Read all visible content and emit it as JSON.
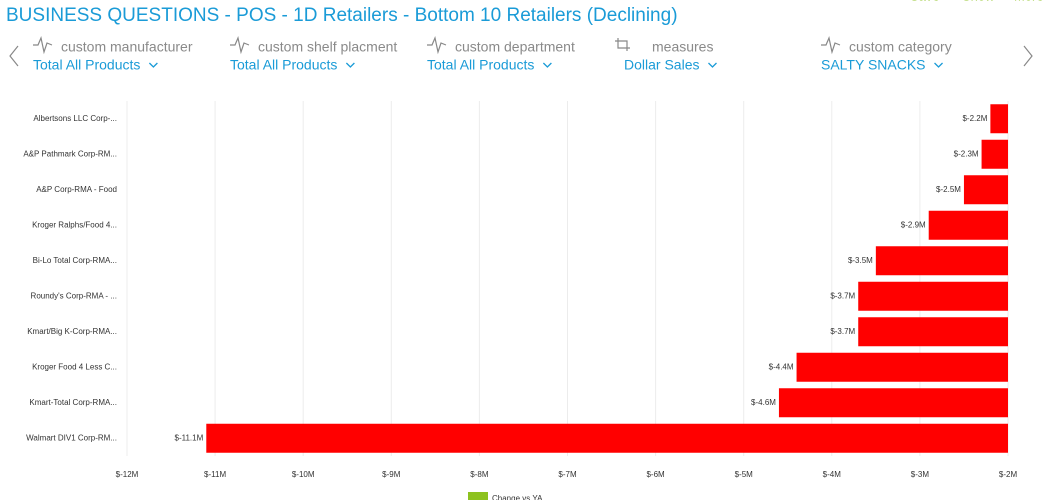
{
  "header": {
    "title": "BUSINESS QUESTIONS - POS - 1D Retailers - Bottom 10 Retailers (Declining)",
    "actions": [
      "Save",
      "Show",
      "More"
    ]
  },
  "filters": [
    {
      "label": "custom manufacturer",
      "value": "Total All Products"
    },
    {
      "label": "custom shelf placment",
      "value": "Total All Products"
    },
    {
      "label": "custom department",
      "value": "Total All Products"
    },
    {
      "label": "measures",
      "value": "Dollar Sales"
    },
    {
      "label": "custom category",
      "value": "SALTY SNACKS"
    }
  ],
  "chart_data": {
    "type": "hbar",
    "categories": [
      "Albertsons LLC Corp-...",
      "A&P Pathmark Corp-RM...",
      "A&P Corp-RMA - Food",
      "Kroger Ralphs/Food 4...",
      "Bi-Lo Total Corp-RMA...",
      "Roundy's Corp-RMA - ...",
      "Kmart/Big K-Corp-RMA...",
      "Kroger Food 4 Less C...",
      "Kmart-Total Corp-RMA...",
      "Walmart DIV1 Corp-RM..."
    ],
    "series": [
      {
        "name": "Change vs YA",
        "color": "#ff0000",
        "legend_color": "#8dc21f",
        "values": [
          -2200000,
          -2300000,
          -2500000,
          -2900000,
          -3500000,
          -3700000,
          -3700000,
          -4400000,
          -4600000,
          -11100000
        ],
        "value_labels": [
          "$-2.2M",
          "$-2.3M",
          "$-2.5M",
          "$-2.9M",
          "$-3.5M",
          "$-3.7M",
          "$-3.7M",
          "$-4.4M",
          "$-4.6M",
          "$-11.1M"
        ]
      }
    ],
    "xlim": [
      -12000000,
      -2000000
    ],
    "xticks": [
      {
        "value": -12000000,
        "label": "$-12M"
      },
      {
        "value": -11000000,
        "label": "$-11M"
      },
      {
        "value": -10000000,
        "label": "$-10M"
      },
      {
        "value": -9000000,
        "label": "$-9M"
      },
      {
        "value": -8000000,
        "label": "$-8M"
      },
      {
        "value": -7000000,
        "label": "$-7M"
      },
      {
        "value": -6000000,
        "label": "$-6M"
      },
      {
        "value": -5000000,
        "label": "$-5M"
      },
      {
        "value": -4000000,
        "label": "$-4M"
      },
      {
        "value": -3000000,
        "label": "$-3M"
      },
      {
        "value": -2000000,
        "label": "$-2M"
      }
    ],
    "grid": true
  }
}
